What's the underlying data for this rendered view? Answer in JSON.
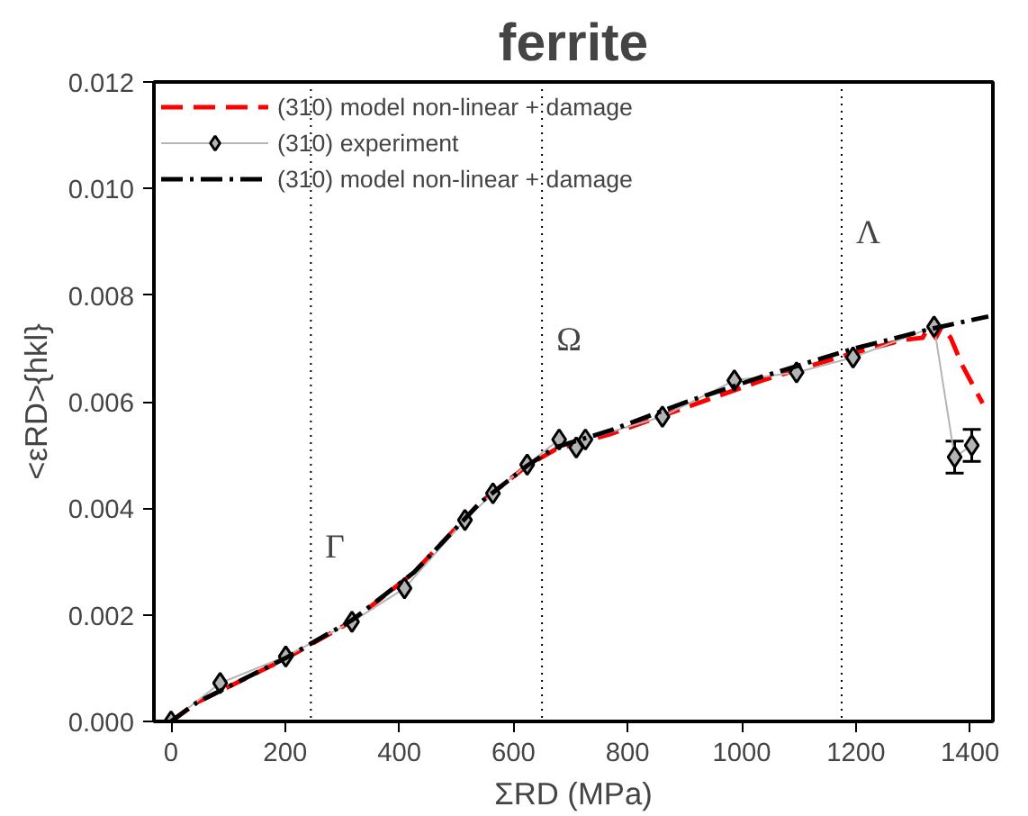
{
  "chart_data": {
    "type": "line",
    "title": "ferrite",
    "xlabel": "ΣRD (MPa)",
    "ylabel": "<εRD>{hkl}",
    "xlim": [
      -30,
      1440
    ],
    "ylim": [
      0,
      0.012
    ],
    "xticks": [
      0,
      200,
      400,
      600,
      800,
      1000,
      1200,
      1400
    ],
    "yticks": [
      {
        "value": 0,
        "label": "0.000"
      },
      {
        "value": 0.002,
        "label": "0.002"
      },
      {
        "value": 0.004,
        "label": "0.004"
      },
      {
        "value": 0.006,
        "label": "0.006"
      },
      {
        "value": 0.008,
        "label": "0.008"
      },
      {
        "value": 0.01,
        "label": "0.010"
      },
      {
        "value": 0.012,
        "label": "0.012"
      }
    ],
    "grid": false,
    "legend": "top left",
    "series": [
      {
        "name": "(310) model non-linear + damage",
        "color": "#ff0000",
        "line_style": "dashed",
        "marker": "none",
        "x": [
          0,
          46,
          201,
          317,
          426,
          541,
          624,
          673,
          772,
          904,
          1036,
          1191,
          1284,
          1317,
          1327,
          1340,
          1350,
          1366,
          1386,
          1422
        ],
        "values": [
          0,
          0.00036,
          0.00118,
          0.00188,
          0.0028,
          0.0041,
          0.0048,
          0.0051,
          0.0054,
          0.0059,
          0.0064,
          0.0069,
          0.00716,
          0.0072,
          0.0074,
          0.0072,
          0.0074,
          0.0072,
          0.00669,
          0.00597
        ]
      },
      {
        "name": "(310) experiment",
        "color": "#b4b4b4",
        "marker": "diamond",
        "line_style": "solid",
        "x": [
          0,
          86,
          201,
          317,
          409,
          515,
          564,
          624,
          680,
          710,
          726,
          861,
          987,
          1096,
          1195,
          1337,
          1373,
          1403
        ],
        "values": [
          0,
          0.00072,
          0.00122,
          0.00187,
          0.0025,
          0.00378,
          0.00428,
          0.00482,
          0.00529,
          0.00514,
          0.00529,
          0.00572,
          0.0064,
          0.00655,
          0.00683,
          0.00741,
          0.00496,
          0.00518
        ],
        "errors": [
          null,
          null,
          null,
          null,
          null,
          null,
          null,
          null,
          null,
          null,
          null,
          null,
          null,
          null,
          null,
          null,
          0.0003,
          0.0003
        ]
      },
      {
        "name": "(310) model non-linear + damage",
        "color": "#000000",
        "line_style": "dashdot",
        "marker": "none",
        "x": [
          0,
          46,
          201,
          317,
          426,
          541,
          624,
          673,
          772,
          904,
          1036,
          1191,
          1333,
          1432
        ],
        "values": [
          0,
          0.00036,
          0.00119,
          0.0019,
          0.0028,
          0.0041,
          0.0048,
          0.00514,
          0.00547,
          0.006,
          0.00647,
          0.00698,
          0.00737,
          0.0076
        ]
      }
    ],
    "ref_lines": [
      {
        "axis": "x",
        "value": 245,
        "color": "#000000",
        "line_style": "dotted"
      },
      {
        "axis": "x",
        "value": 650,
        "color": "#000000",
        "line_style": "dotted"
      },
      {
        "axis": "x",
        "value": 1175,
        "color": "#000000",
        "line_style": "dotted"
      }
    ],
    "annotations": [
      {
        "text": "Γ",
        "x": 245,
        "y": 0.0029
      },
      {
        "text": "Ω",
        "x": 650,
        "y": 0.0068
      },
      {
        "text": "Λ",
        "x": 1175,
        "y": 0.0088
      }
    ]
  }
}
